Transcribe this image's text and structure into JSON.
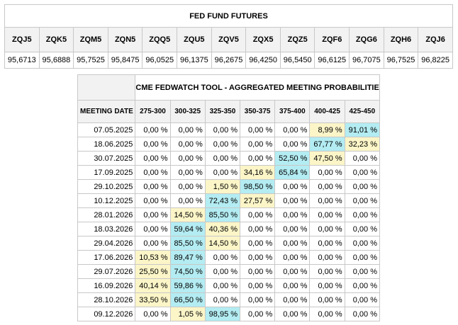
{
  "futures": {
    "title": "FED FUND FUTURES",
    "contracts": [
      "ZQJ5",
      "ZQK5",
      "ZQM5",
      "ZQN5",
      "ZQQ5",
      "ZQU5",
      "ZQV5",
      "ZQX5",
      "ZQZ5",
      "ZQF6",
      "ZQG6",
      "ZQH6",
      "ZQJ6"
    ],
    "prices": [
      "95,6713",
      "95,6888",
      "95,7525",
      "95,8475",
      "96,0525",
      "96,1375",
      "96,2675",
      "96,4250",
      "96,5450",
      "96,6125",
      "96,7075",
      "96,7525",
      "96,8225"
    ]
  },
  "probabilities": {
    "title": "CME FEDWATCH TOOL - AGGREGATED MEETING PROBABILITIES",
    "date_header": "MEETING DATE",
    "ranges": [
      "275-300",
      "300-325",
      "325-350",
      "350-375",
      "375-400",
      "400-425",
      "425-450"
    ],
    "highlight_colors": {
      "high": "#b3ecf2",
      "medium": "#fbf5c8"
    },
    "rows": [
      {
        "date": "07.05.2025",
        "values": [
          "0,00 %",
          "0,00 %",
          "0,00 %",
          "0,00 %",
          "0,00 %",
          "8,99 %",
          "91,01 %"
        ],
        "hl": [
          "",
          "",
          "",
          "",
          "",
          "mid",
          "hi"
        ]
      },
      {
        "date": "18.06.2025",
        "values": [
          "0,00 %",
          "0,00 %",
          "0,00 %",
          "0,00 %",
          "0,00 %",
          "67,77 %",
          "32,23 %"
        ],
        "hl": [
          "",
          "",
          "",
          "",
          "",
          "hi",
          "mid"
        ]
      },
      {
        "date": "30.07.2025",
        "values": [
          "0,00 %",
          "0,00 %",
          "0,00 %",
          "0,00 %",
          "52,50 %",
          "47,50 %",
          "0,00 %"
        ],
        "hl": [
          "",
          "",
          "",
          "",
          "hi",
          "mid",
          ""
        ]
      },
      {
        "date": "17.09.2025",
        "values": [
          "0,00 %",
          "0,00 %",
          "0,00 %",
          "34,16 %",
          "65,84 %",
          "0,00 %",
          "0,00 %"
        ],
        "hl": [
          "",
          "",
          "",
          "mid",
          "hi",
          "",
          ""
        ]
      },
      {
        "date": "29.10.2025",
        "values": [
          "0,00 %",
          "0,00 %",
          "1,50 %",
          "98,50 %",
          "0,00 %",
          "0,00 %",
          "0,00 %"
        ],
        "hl": [
          "",
          "",
          "mid",
          "hi",
          "",
          "",
          ""
        ]
      },
      {
        "date": "10.12.2025",
        "values": [
          "0,00 %",
          "0,00 %",
          "72,43 %",
          "27,57 %",
          "0,00 %",
          "0,00 %",
          "0,00 %"
        ],
        "hl": [
          "",
          "",
          "hi",
          "mid",
          "",
          "",
          ""
        ]
      },
      {
        "date": "28.01.2026",
        "values": [
          "0,00 %",
          "14,50 %",
          "85,50 %",
          "0,00 %",
          "0,00 %",
          "0,00 %",
          "0,00 %"
        ],
        "hl": [
          "",
          "mid",
          "hi",
          "",
          "",
          "",
          ""
        ]
      },
      {
        "date": "18.03.2026",
        "values": [
          "0,00 %",
          "59,64 %",
          "40,36 %",
          "0,00 %",
          "0,00 %",
          "0,00 %",
          "0,00 %"
        ],
        "hl": [
          "",
          "hi",
          "mid",
          "",
          "",
          "",
          ""
        ]
      },
      {
        "date": "29.04.2026",
        "values": [
          "0,00 %",
          "85,50 %",
          "14,50 %",
          "0,00 %",
          "0,00 %",
          "0,00 %",
          "0,00 %"
        ],
        "hl": [
          "",
          "hi",
          "mid",
          "",
          "",
          "",
          ""
        ]
      },
      {
        "date": "17.06.2026",
        "values": [
          "10,53 %",
          "89,47 %",
          "0,00 %",
          "0,00 %",
          "0,00 %",
          "0,00 %",
          "0,00 %"
        ],
        "hl": [
          "mid",
          "hi",
          "",
          "",
          "",
          "",
          ""
        ]
      },
      {
        "date": "29.07.2026",
        "values": [
          "25,50 %",
          "74,50 %",
          "0,00 %",
          "0,00 %",
          "0,00 %",
          "0,00 %",
          "0,00 %"
        ],
        "hl": [
          "mid",
          "hi",
          "",
          "",
          "",
          "",
          ""
        ]
      },
      {
        "date": "16.09.2026",
        "values": [
          "40,14 %",
          "59,86 %",
          "0,00 %",
          "0,00 %",
          "0,00 %",
          "0,00 %",
          "0,00 %"
        ],
        "hl": [
          "mid",
          "hi",
          "",
          "",
          "",
          "",
          ""
        ]
      },
      {
        "date": "28.10.2026",
        "values": [
          "33,50 %",
          "66,50 %",
          "0,00 %",
          "0,00 %",
          "0,00 %",
          "0,00 %",
          "0,00 %"
        ],
        "hl": [
          "mid",
          "hi",
          "",
          "",
          "",
          "",
          ""
        ]
      },
      {
        "date": "09.12.2026",
        "values": [
          "0,00 %",
          "1,05 %",
          "98,95 %",
          "0,00 %",
          "0,00 %",
          "0,00 %",
          "0,00 %"
        ],
        "hl": [
          "",
          "mid",
          "hi",
          "",
          "",
          "",
          ""
        ]
      }
    ]
  }
}
